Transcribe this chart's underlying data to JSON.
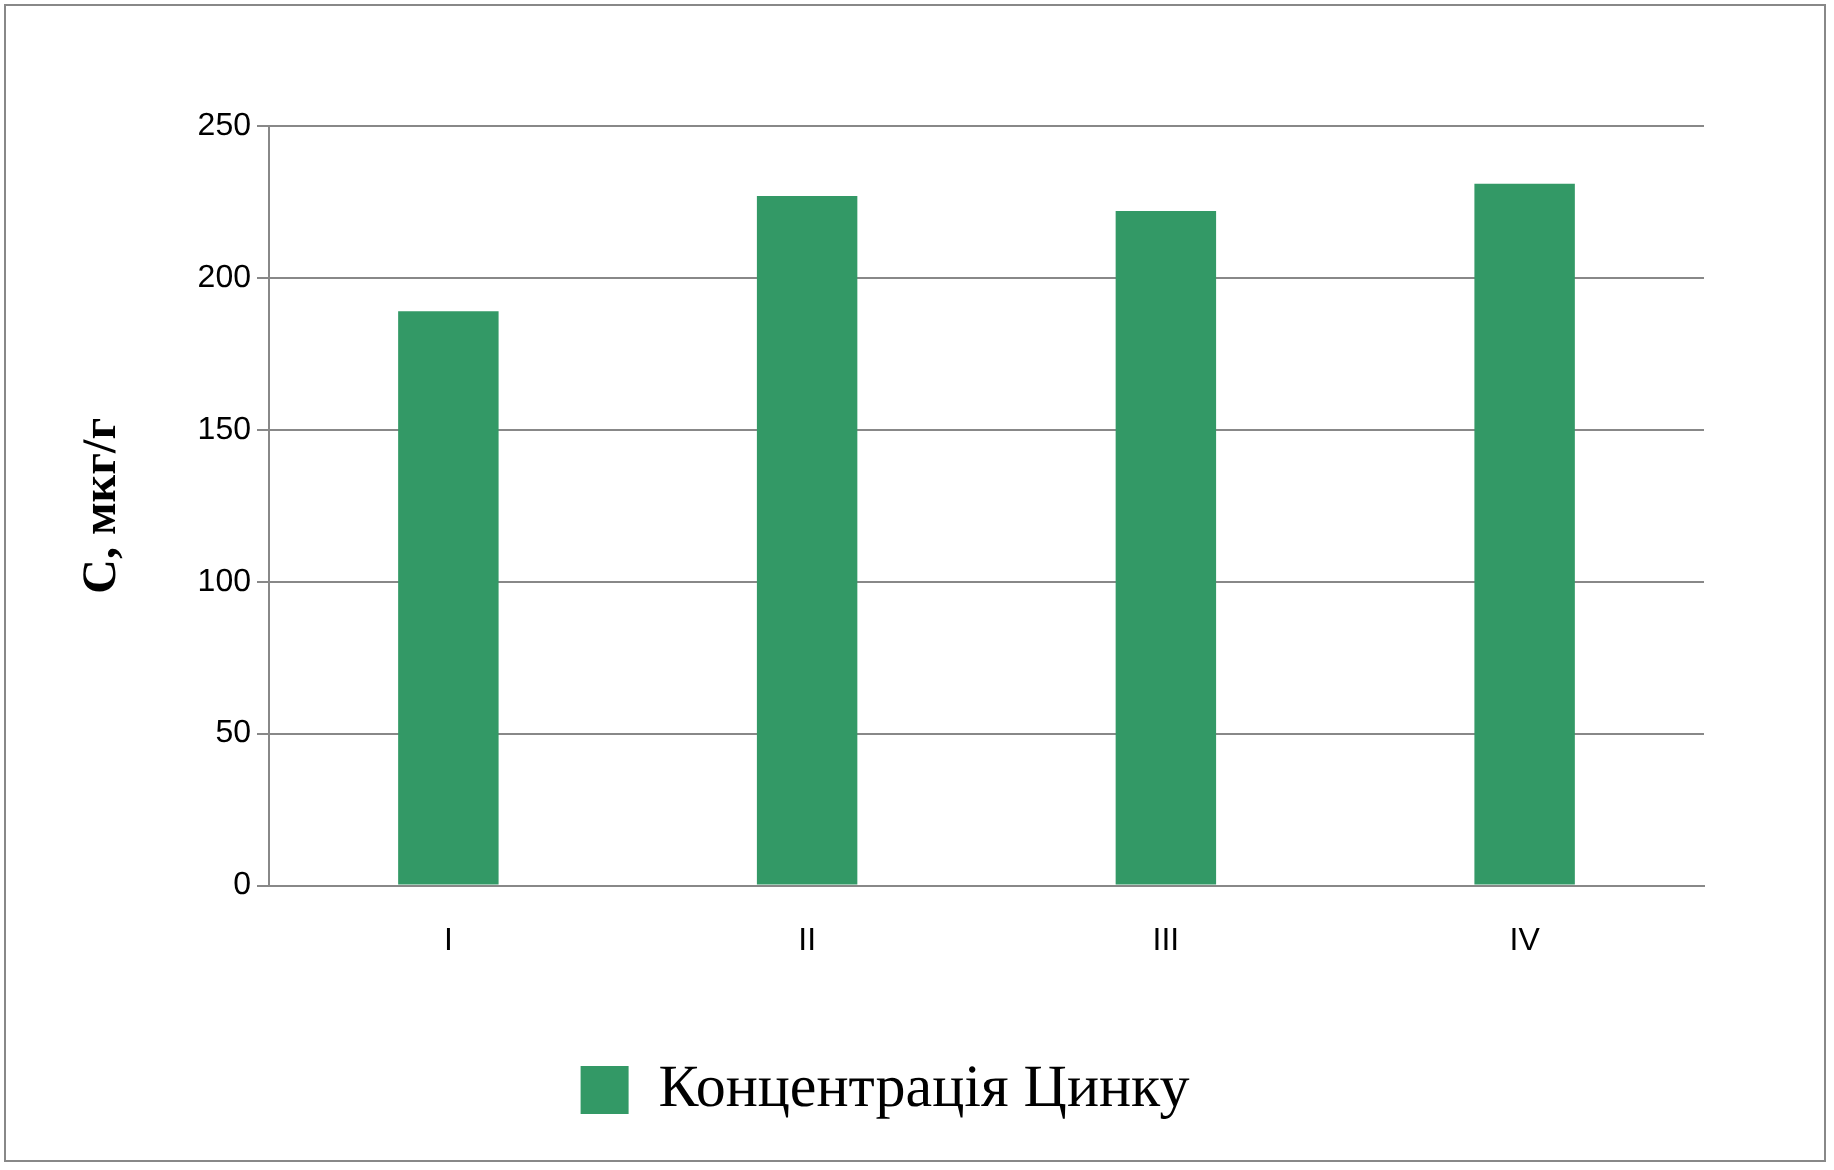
{
  "chart_data": {
    "type": "bar",
    "ylabel": "C, мкг/г",
    "categories": [
      "I",
      "II",
      "III",
      "IV"
    ],
    "series": [
      {
        "name": "Концентрація Цинку",
        "color": "#339966",
        "values": [
          189,
          227,
          222,
          231
        ]
      }
    ],
    "ylim": [
      0,
      250
    ],
    "yticks": [
      0,
      50,
      100,
      150,
      200,
      250
    ],
    "grid": "y",
    "legend": "bottom"
  }
}
